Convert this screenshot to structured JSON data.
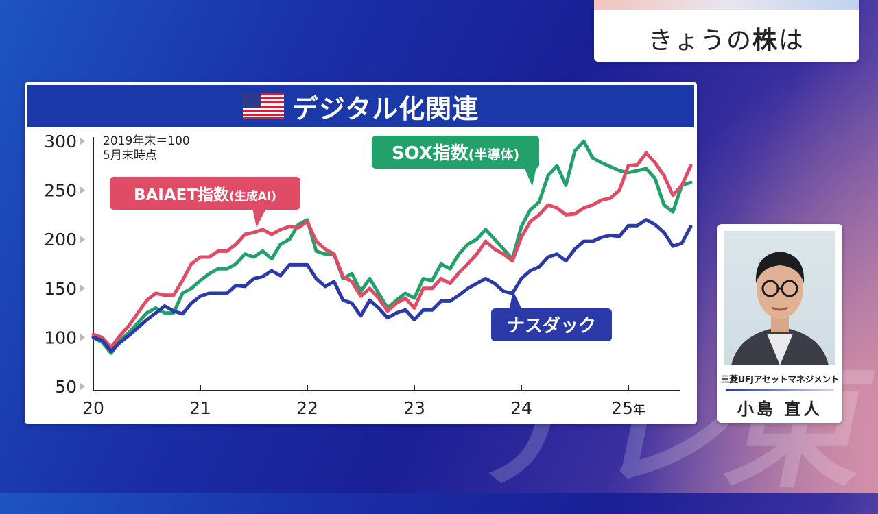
{
  "topic": {
    "prefix": "きょうの",
    "bold": "株",
    "suffix": "は"
  },
  "chart_data": {
    "type": "line",
    "title": "デジタル化関連",
    "note_lines": [
      "2019年末＝100",
      "5月末時点"
    ],
    "x_tick_labels": [
      "20",
      "21",
      "22",
      "23",
      "24",
      "25年"
    ],
    "x_ticks": [
      2020,
      2021,
      2022,
      2023,
      2024,
      2025
    ],
    "xlim": [
      2020.0,
      2025.4167
    ],
    "ylim": [
      50,
      300
    ],
    "y_ticks": [
      50,
      100,
      150,
      200,
      250,
      300
    ],
    "grid": false,
    "series": [
      {
        "name": "ナスダック",
        "color": "#2b3aa8",
        "x_start": 2020.0,
        "x_step": 0.08333,
        "values": [
          100,
          97,
          86,
          95,
          102,
          110,
          118,
          125,
          132,
          127,
          124,
          135,
          142,
          145,
          145,
          145,
          153,
          152,
          160,
          162,
          168,
          163,
          174,
          174,
          174,
          160,
          152,
          157,
          138,
          135,
          122,
          138,
          130,
          120,
          125,
          128,
          118,
          128,
          128,
          137,
          137,
          143,
          150,
          155,
          160,
          155,
          147,
          145,
          160,
          168,
          172,
          182,
          185,
          178,
          190,
          198,
          198,
          202,
          204,
          203,
          214,
          214,
          220,
          215,
          207,
          193,
          196,
          213
        ]
      },
      {
        "name": "BAIAET指数(生成AI)",
        "color": "#e04b66",
        "x_start": 2020.0,
        "x_step": 0.08333,
        "values": [
          103,
          100,
          90,
          102,
          112,
          125,
          138,
          145,
          143,
          143,
          158,
          175,
          182,
          182,
          188,
          188,
          195,
          205,
          207,
          210,
          205,
          210,
          213,
          212,
          218,
          198,
          190,
          185,
          162,
          157,
          142,
          150,
          140,
          127,
          135,
          140,
          130,
          150,
          150,
          160,
          155,
          166,
          175,
          185,
          198,
          190,
          185,
          178,
          202,
          218,
          225,
          235,
          232,
          225,
          226,
          232,
          235,
          240,
          242,
          250,
          275,
          276,
          288,
          278,
          265,
          245,
          255,
          275
        ]
      },
      {
        "name": "SOX指数(半導体)",
        "color": "#22a26a",
        "x_start": 2020.0,
        "x_step": 0.08333,
        "values": [
          100,
          95,
          84,
          97,
          105,
          115,
          125,
          130,
          125,
          125,
          145,
          150,
          158,
          165,
          170,
          170,
          175,
          185,
          182,
          188,
          180,
          195,
          200,
          215,
          220,
          188,
          185,
          185,
          160,
          165,
          147,
          160,
          145,
          130,
          138,
          145,
          140,
          160,
          158,
          175,
          170,
          185,
          195,
          200,
          210,
          200,
          190,
          180,
          213,
          230,
          238,
          265,
          275,
          255,
          290,
          300,
          283,
          278,
          274,
          270,
          268,
          270,
          272,
          262,
          235,
          228,
          255,
          258
        ]
      }
    ],
    "callouts": [
      {
        "text": "SOX指数",
        "subtext": "(半導体)",
        "color": "#22a26a"
      },
      {
        "text": "BAIAET指数",
        "subtext": "(生成AI)",
        "color": "#e04b66"
      },
      {
        "text": "ナスダック",
        "subtext": "",
        "color": "#2b3aa8"
      }
    ]
  },
  "person": {
    "company": "三菱UFJアセットマネジメント",
    "name": "小島 直人"
  },
  "watermark": "テレ東"
}
